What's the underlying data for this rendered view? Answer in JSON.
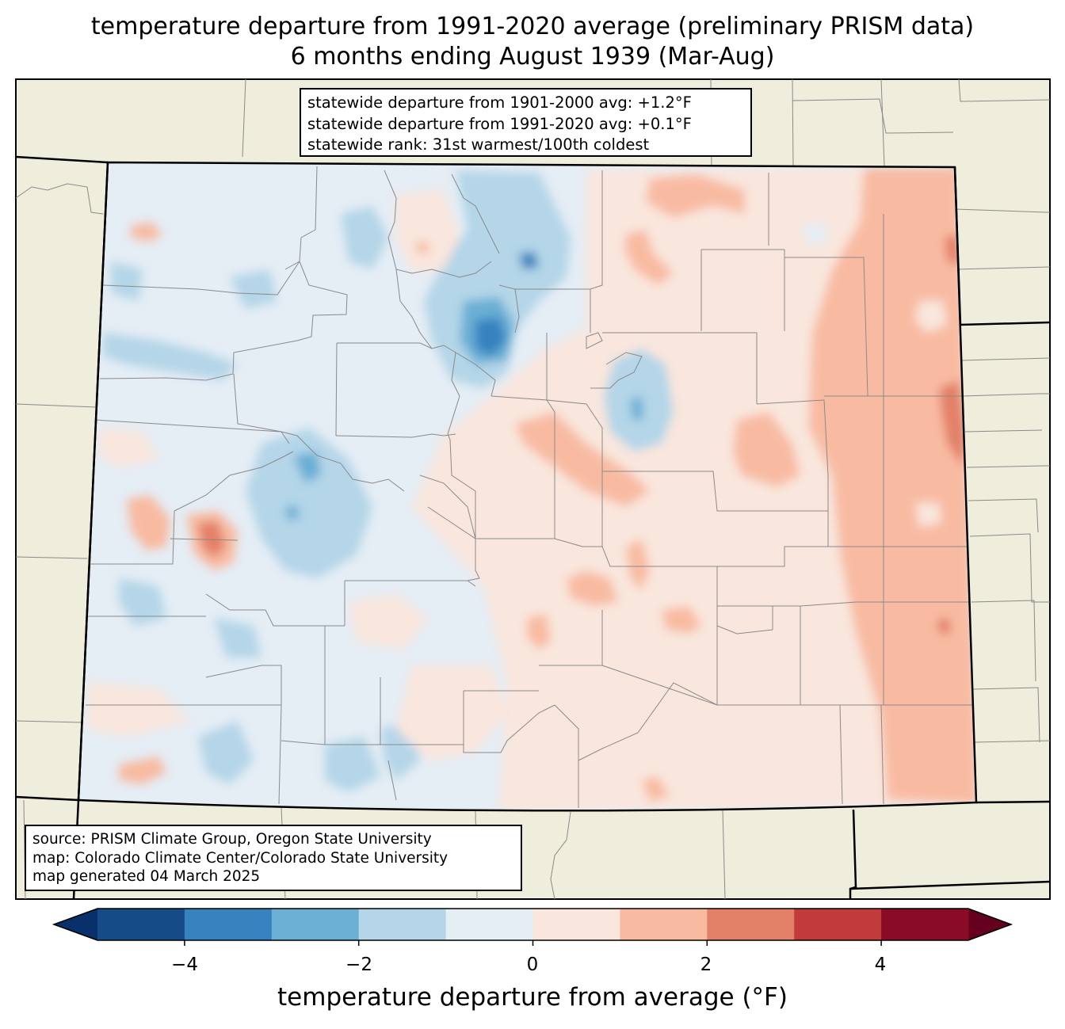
{
  "title": {
    "line1": "temperature departure from 1991-2020 average (preliminary PRISM data)",
    "line2": "6 months ending August 1939 (Mar-Aug)"
  },
  "stats": {
    "line1": "statewide departure from 1901-2000 avg: +1.2°F",
    "line2": "statewide departure from 1991-2020 avg: +0.1°F",
    "line3": "statewide rank: 31st warmest/100th coldest"
  },
  "source": {
    "line1": "source: PRISM Climate Group, Oregon State University",
    "line2": "map: Colorado Climate Center/Colorado State University",
    "line3": "map generated 04 March 2025"
  },
  "colorbar": {
    "label": "temperature departure from average (°F)",
    "ticks": [
      "−4",
      "−2",
      "0",
      "2",
      "4"
    ],
    "bins": [
      -5,
      -4,
      -3,
      -2,
      -1,
      0,
      1,
      2,
      3,
      4,
      5
    ],
    "colors": [
      "#08306b",
      "#154b87",
      "#3582bf",
      "#6bafd4",
      "#b4d6e8",
      "#e5edf5",
      "#f9e6dd",
      "#f8bba2",
      "#e38068",
      "#c13b3b",
      "#8a0b25",
      "#65001e"
    ]
  },
  "map_colors": {
    "land": "#efeddc",
    "border": "#000000",
    "county_lines": "#8a8a8a"
  }
}
